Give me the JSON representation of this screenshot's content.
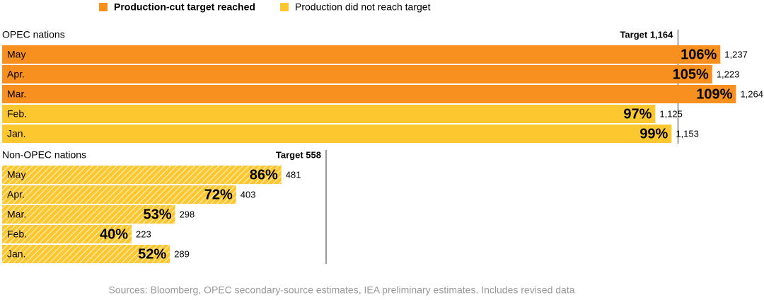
{
  "legend": [
    {
      "name": "Production-cut target reached",
      "color": "#f7901e"
    },
    {
      "name": "Production did not reach target",
      "color": "#fdc82f"
    }
  ],
  "chart_data": [
    {
      "type": "bar",
      "title": "OPEC nations",
      "categories": [
        "May",
        "Apr.",
        "Mar.",
        "Feb.",
        "Jan."
      ],
      "values": [
        1237,
        1223,
        1264,
        1125,
        1153
      ],
      "value_labels": [
        "1,237",
        "1,223",
        "1,264",
        "1,125",
        "1,153"
      ],
      "percent_values": [
        106,
        105,
        109,
        97,
        99
      ],
      "percent_labels": [
        "106%",
        "105%",
        "109%",
        "97%",
        "99%"
      ],
      "colors": [
        "#f7901e",
        "#f7901e",
        "#f7901e",
        "#fdc82f",
        "#fdc82f"
      ],
      "hatched": false,
      "target": {
        "value": 1164,
        "label": "Target 1,164"
      },
      "xlim": [
        0,
        1300
      ]
    },
    {
      "type": "bar",
      "title": "Non-OPEC nations",
      "categories": [
        "May",
        "Apr.",
        "Mar.",
        "Feb.",
        "Jan."
      ],
      "values": [
        481,
        403,
        298,
        223,
        289
      ],
      "percent_values": [
        86,
        72,
        53,
        40,
        52
      ],
      "percent_labels": [
        "86%",
        "72%",
        "53%",
        "40%",
        "52%"
      ],
      "colors": [
        "#fdc82f",
        "#fdc82f",
        "#fdc82f",
        "#fdc82f",
        "#fdc82f"
      ],
      "hatched": true,
      "target": {
        "value": 558,
        "label": "Target 558"
      },
      "xlim": [
        0,
        1300
      ]
    }
  ],
  "source": "Sources: Bloomberg, OPEC secondary-source estimates, IEA preliminary estimates. Includes revised data"
}
